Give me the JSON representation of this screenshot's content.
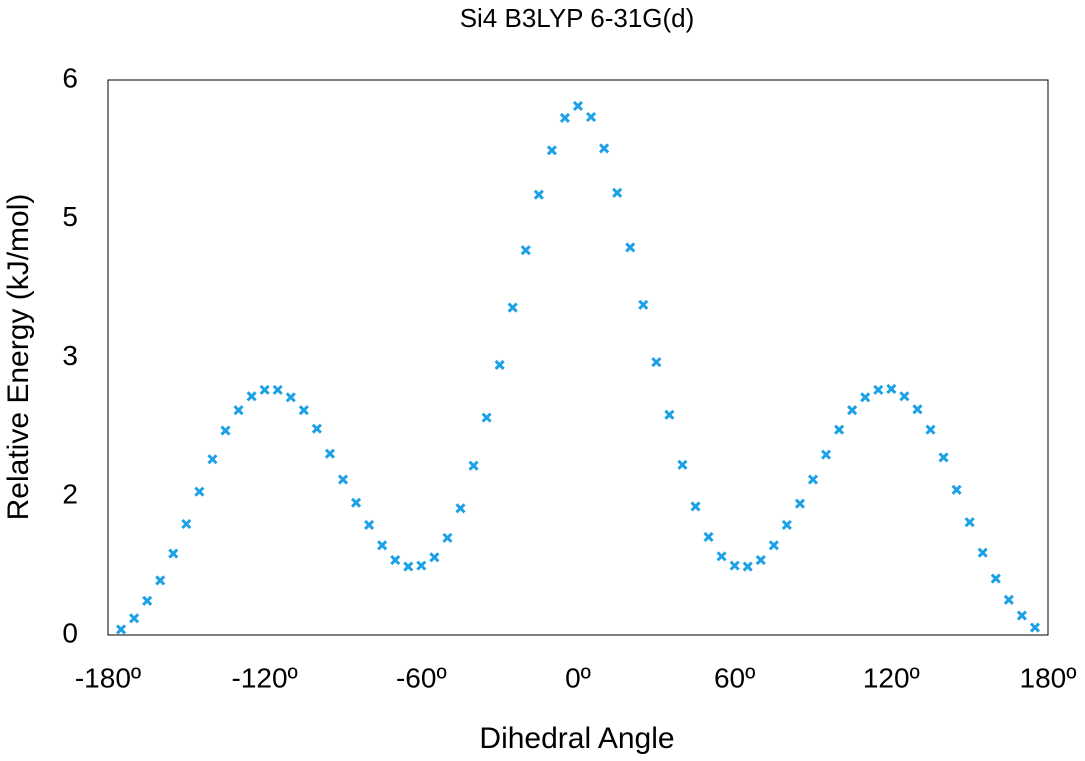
{
  "chart_data": {
    "type": "scatter",
    "title": "Si4 B3LYP 6-31G(d)",
    "xlabel": "Dihedral Angle",
    "ylabel": "Relative Energy (kJ/mol)",
    "xlim": [
      -180,
      180
    ],
    "ylim": [
      0,
      6
    ],
    "xticks": [
      {
        "value": -180,
        "label": "-180º"
      },
      {
        "value": -120,
        "label": "-120º"
      },
      {
        "value": -60,
        "label": "-60º"
      },
      {
        "value": 0,
        "label": "0º"
      },
      {
        "value": 60,
        "label": "60º"
      },
      {
        "value": 120,
        "label": "120º"
      },
      {
        "value": 180,
        "label": "180º"
      }
    ],
    "yticks": [
      0,
      {
        "value": 1.5,
        "label": "2"
      },
      3,
      {
        "value": 4.5,
        "label": "5"
      },
      6
    ],
    "grid": false,
    "color": "#1da1e6",
    "x": [
      -175,
      -170,
      -165,
      -160,
      -155,
      -150,
      -145,
      -140,
      -135,
      -130,
      -125,
      -120,
      -115,
      -110,
      -105,
      -100,
      -95,
      -90,
      -85,
      -80,
      -75,
      -70,
      -65,
      -60,
      -55,
      -50,
      -45,
      -40,
      -35,
      -30,
      -25,
      -20,
      -15,
      -10,
      -5,
      0,
      5,
      10,
      15,
      20,
      25,
      30,
      35,
      40,
      45,
      50,
      55,
      60,
      65,
      70,
      75,
      80,
      85,
      90,
      95,
      100,
      105,
      110,
      115,
      120,
      125,
      130,
      135,
      140,
      145,
      150,
      155,
      160,
      165,
      170,
      175
    ],
    "values": [
      0.06,
      0.18,
      0.37,
      0.59,
      0.88,
      1.2,
      1.55,
      1.9,
      2.21,
      2.43,
      2.58,
      2.65,
      2.65,
      2.57,
      2.43,
      2.23,
      1.96,
      1.68,
      1.43,
      1.19,
      0.97,
      0.81,
      0.74,
      0.75,
      0.84,
      1.05,
      1.37,
      1.83,
      2.35,
      2.92,
      3.54,
      4.16,
      4.76,
      5.24,
      5.59,
      5.72,
      5.6,
      5.26,
      4.78,
      4.19,
      3.57,
      2.95,
      2.38,
      1.84,
      1.39,
      1.06,
      0.85,
      0.75,
      0.74,
      0.81,
      0.97,
      1.19,
      1.42,
      1.68,
      1.95,
      2.22,
      2.43,
      2.57,
      2.65,
      2.66,
      2.58,
      2.44,
      2.22,
      1.92,
      1.57,
      1.22,
      0.89,
      0.61,
      0.38,
      0.21,
      0.08
    ]
  }
}
